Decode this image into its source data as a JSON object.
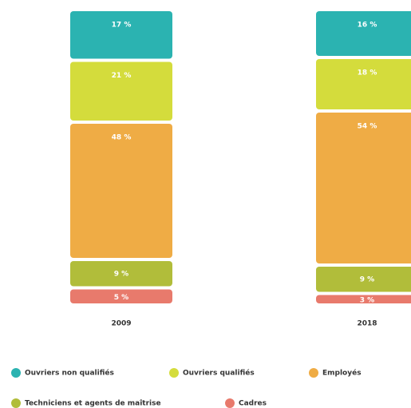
{
  "chart_data": {
    "type": "stacked_bar",
    "categories": [
      "2009",
      "2018"
    ],
    "series": [
      {
        "name": "Ouvriers non qualifiés",
        "color": "#2bb3b1",
        "values": [
          17,
          16
        ],
        "value_labels": [
          "17 %",
          "16 %"
        ]
      },
      {
        "name": "Ouvriers qualifiés",
        "color": "#d4dc3c",
        "values": [
          21,
          18
        ],
        "value_labels": [
          "21 %",
          "18 %"
        ]
      },
      {
        "name": "Employés",
        "color": "#efac45",
        "values": [
          48,
          54
        ],
        "value_labels": [
          "48 %",
          "54 %"
        ]
      },
      {
        "name": "Techniciens et agents de maîtrise",
        "color": "#b1bd3a",
        "values": [
          9,
          9
        ],
        "value_labels": [
          "9 %",
          "9 %"
        ]
      },
      {
        "name": "Cadres",
        "color": "#e87a6c",
        "values": [
          5,
          3
        ],
        "value_labels": [
          "5 %",
          "3 %"
        ]
      }
    ]
  }
}
